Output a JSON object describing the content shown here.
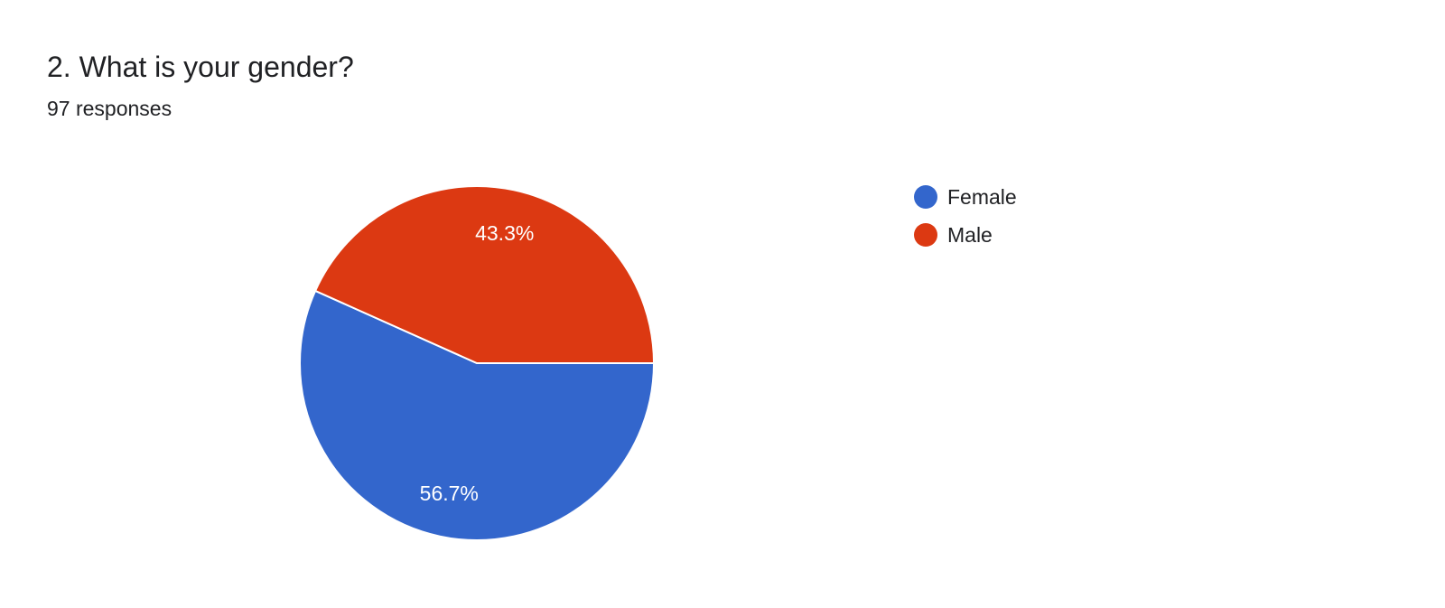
{
  "header": {
    "title": "2. What is your gender?",
    "responses": "97 responses"
  },
  "chart_data": {
    "type": "pie",
    "slices": [
      {
        "label": "Female",
        "value": 56.7,
        "display": "56.7%",
        "color": "#3366cc"
      },
      {
        "label": "Male",
        "value": 43.3,
        "display": "43.3%",
        "color": "#dc3912"
      }
    ],
    "legend_placement": "right"
  }
}
